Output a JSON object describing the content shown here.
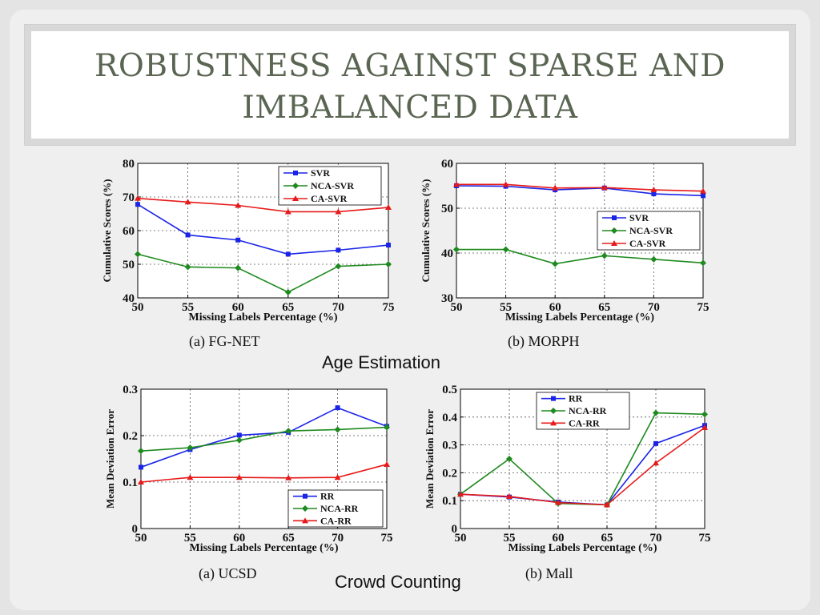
{
  "slide": {
    "title": "ROBUSTNESS AGAINST SPARSE AND IMBALANCED DATA",
    "captions": {
      "age": "Age Estimation",
      "crowd": "Crowd Counting"
    }
  },
  "chart_data": [
    {
      "type": "line",
      "title": "(a) FG-NET",
      "xlabel": "Missing Labels Percentage (%)",
      "ylabel": "Cumulative Scores (%)",
      "x": [
        50,
        55,
        60,
        65,
        70,
        75
      ],
      "xlim": [
        50,
        75
      ],
      "ylim": [
        40,
        80
      ],
      "yticks": [
        40,
        50,
        60,
        70,
        80
      ],
      "grid": true,
      "legend": "top-right",
      "series": [
        {
          "name": "SVR",
          "color": "#1a24e6",
          "marker": "square",
          "values": [
            67.8,
            58.7,
            57.2,
            53.0,
            54.2,
            55.7
          ]
        },
        {
          "name": "NCA-SVR",
          "color": "#1f8a1f",
          "marker": "diamond",
          "values": [
            53.0,
            49.2,
            48.9,
            41.7,
            49.4,
            50.0
          ]
        },
        {
          "name": "CA-SVR",
          "color": "#e61a1a",
          "marker": "triangle",
          "values": [
            69.6,
            68.5,
            67.5,
            65.6,
            65.6,
            66.9
          ]
        }
      ]
    },
    {
      "type": "line",
      "title": "(b) MORPH",
      "xlabel": "Missing Labels Percentage (%)",
      "ylabel": "Cumulative Scores (%)",
      "x": [
        50,
        55,
        60,
        65,
        70,
        75
      ],
      "xlim": [
        50,
        75
      ],
      "ylim": [
        30,
        60
      ],
      "yticks": [
        30,
        40,
        50,
        60
      ],
      "grid": true,
      "legend": "center-right",
      "series": [
        {
          "name": "SVR",
          "color": "#1a24e6",
          "marker": "square",
          "values": [
            55.0,
            54.9,
            54.1,
            54.5,
            53.2,
            52.8
          ]
        },
        {
          "name": "NCA-SVR",
          "color": "#1f8a1f",
          "marker": "diamond",
          "values": [
            40.8,
            40.8,
            37.6,
            39.4,
            38.6,
            37.8
          ]
        },
        {
          "name": "CA-SVR",
          "color": "#e61a1a",
          "marker": "triangle",
          "values": [
            55.3,
            55.3,
            54.5,
            54.6,
            54.1,
            53.8
          ]
        }
      ]
    },
    {
      "type": "line",
      "title": "(a) UCSD",
      "xlabel": "Missing Labels Percentage (%)",
      "ylabel": "Mean Deviation Error",
      "x": [
        50,
        55,
        60,
        65,
        70,
        75
      ],
      "xlim": [
        50,
        75
      ],
      "ylim": [
        0,
        0.3
      ],
      "yticks": [
        0,
        0.1,
        0.2,
        0.3
      ],
      "grid": true,
      "legend": "bottom-right",
      "series": [
        {
          "name": "RR",
          "color": "#1a24e6",
          "marker": "square",
          "values": [
            0.132,
            0.17,
            0.201,
            0.207,
            0.26,
            0.22
          ]
        },
        {
          "name": "NCA-RR",
          "color": "#1f8a1f",
          "marker": "diamond",
          "values": [
            0.167,
            0.174,
            0.19,
            0.21,
            0.213,
            0.218
          ]
        },
        {
          "name": "CA-RR",
          "color": "#e61a1a",
          "marker": "triangle",
          "values": [
            0.1,
            0.11,
            0.11,
            0.109,
            0.11,
            0.138
          ]
        }
      ]
    },
    {
      "type": "line",
      "title": "(b) Mall",
      "xlabel": "Missing Labels Percentage (%)",
      "ylabel": "Mean Deviation Error",
      "x": [
        50,
        55,
        60,
        65,
        70,
        75
      ],
      "xlim": [
        50,
        75
      ],
      "ylim": [
        0,
        0.5
      ],
      "yticks": [
        0,
        0.1,
        0.2,
        0.3,
        0.4,
        0.5
      ],
      "grid": true,
      "legend": "top-center",
      "series": [
        {
          "name": "RR",
          "color": "#1a24e6",
          "marker": "square",
          "values": [
            0.123,
            0.113,
            0.095,
            0.085,
            0.305,
            0.37
          ]
        },
        {
          "name": "NCA-RR",
          "color": "#1f8a1f",
          "marker": "diamond",
          "values": [
            0.123,
            0.25,
            0.09,
            0.085,
            0.415,
            0.41
          ]
        },
        {
          "name": "CA-RR",
          "color": "#e61a1a",
          "marker": "triangle",
          "values": [
            0.123,
            0.115,
            0.093,
            0.085,
            0.235,
            0.362
          ]
        }
      ]
    }
  ]
}
